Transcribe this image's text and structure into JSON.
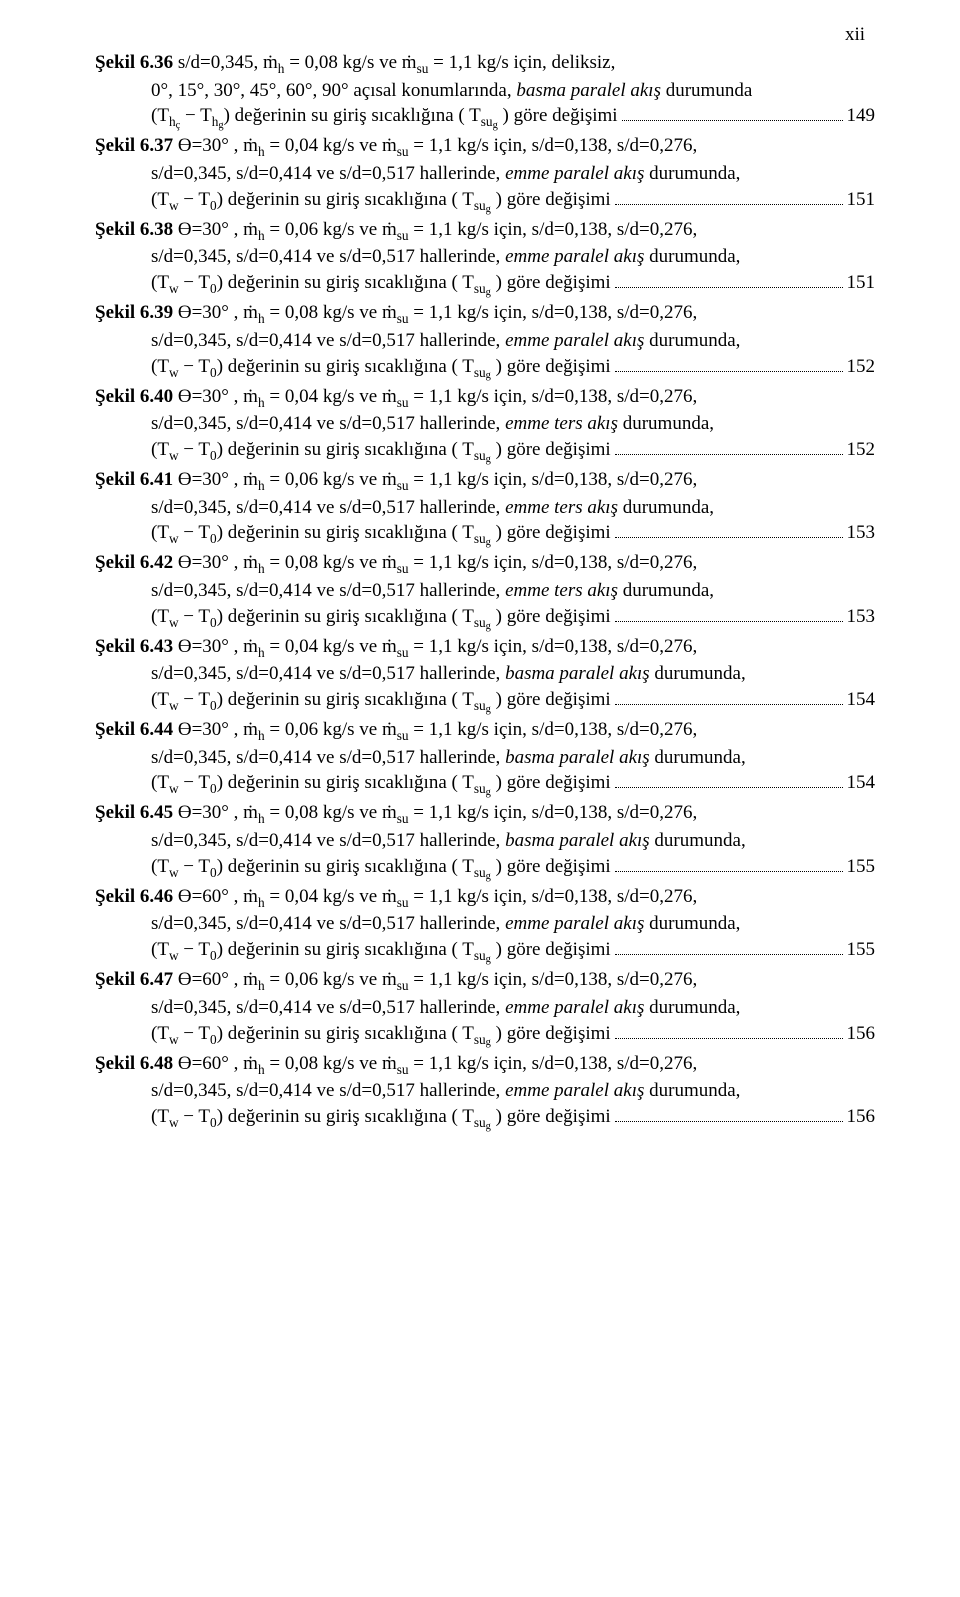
{
  "page_roman": "xii",
  "colors": {
    "text": "#000000",
    "background": "#ffffff"
  },
  "typography": {
    "family": "Times New Roman",
    "base_size_pt": 12,
    "line_height": 1.35
  },
  "common": {
    "fig_label": "Şekil",
    "mdot_h": "ṁ",
    "mdot_su": "ṁ",
    "kgs_ve": "kg/s ve",
    "kgs_icin": "kg/s için,",
    "sd_list": "s/d=0,138, s/d=0,276,",
    "sd_tail": "s/d=0,345, s/d=0,414 ve s/d=0,517 hallerinde,",
    "emme_paralel": "emme paralel akış",
    "emme_ters": "emme ters akış",
    "basma_paralel": "basma paralel akış",
    "durumunda": "durumunda,",
    "degerinin": "değerinin su giriş sıcaklığına (",
    "T_sug": "T",
    "gore": ") göre değişimi"
  },
  "entries": [
    {
      "no": "6.36",
      "line1_a": "s/d=0,345,",
      "mh": "= 0,08",
      "msu": "= 1,1",
      "line1_b": "kg/s için, deliksiz,",
      "cont": "0°, 15°, 30°, 45°, 60°, 90° açısal konumlarında,",
      "flow": "basma paralel akış",
      "pair_open": "(T",
      "pair_sub1": "h",
      "pair_subsub1": "ç",
      "pair_mid": " − T",
      "pair_sub2": "h",
      "pair_subsub2": "g",
      "pair_close": ")",
      "page": "149",
      "special": true
    },
    {
      "no": "6.37",
      "theta": "Ө=30°",
      "mh": "= 0,04",
      "msu": "= 1,1",
      "flow": "emme paralel akış",
      "page": "151"
    },
    {
      "no": "6.38",
      "theta": "Ө=30°",
      "mh": "= 0,06",
      "msu": "= 1,1",
      "flow": "emme paralel akış",
      "page": "151"
    },
    {
      "no": "6.39",
      "theta": "Ө=30°",
      "mh": "= 0,08",
      "msu": "= 1,1",
      "flow": "emme paralel akış",
      "page": "152"
    },
    {
      "no": "6.40",
      "theta": "Ө=30°",
      "mh": "= 0,04",
      "msu": "= 1,1",
      "flow": "emme ters akış",
      "page": "152"
    },
    {
      "no": "6.41",
      "theta": "Ө=30°",
      "mh": "= 0,06",
      "msu": "= 1,1",
      "flow": "emme ters akış",
      "page": "153"
    },
    {
      "no": "6.42",
      "theta": "Ө=30°",
      "mh": "= 0,08",
      "msu": "= 1,1",
      "flow": "emme ters akış",
      "page": "153"
    },
    {
      "no": "6.43",
      "theta": "Ө=30°",
      "mh": "= 0,04",
      "msu": "= 1,1",
      "flow": "basma paralel akış",
      "page": "154"
    },
    {
      "no": "6.44",
      "theta": "Ө=30°",
      "mh": "= 0,06",
      "msu": "= 1,1",
      "flow": "basma paralel akış",
      "page": "154"
    },
    {
      "no": "6.45",
      "theta": "Ө=30°",
      "mh": "= 0,08",
      "msu": "= 1,1",
      "flow": "basma paralel akış",
      "page": "155"
    },
    {
      "no": "6.46",
      "theta": "Ө=60°",
      "mh": "= 0,04",
      "msu": "= 1,1",
      "flow": "emme paralel akış",
      "page": "155"
    },
    {
      "no": "6.47",
      "theta": "Ө=60°",
      "mh": "= 0,06",
      "msu": "= 1,1",
      "flow": "emme paralel akış",
      "page": "156"
    },
    {
      "no": "6.48",
      "theta": "Ө=60°",
      "mh": "= 0,08",
      "msu": "= 1,1",
      "flow": "emme paralel akış",
      "page": "156"
    }
  ],
  "pair_std": {
    "open": "(T",
    "sub1": "w",
    "mid": " − T",
    "sub2": "0",
    "close": ")"
  },
  "tsub": {
    "su": "su",
    "g": "g",
    "h": "h"
  }
}
